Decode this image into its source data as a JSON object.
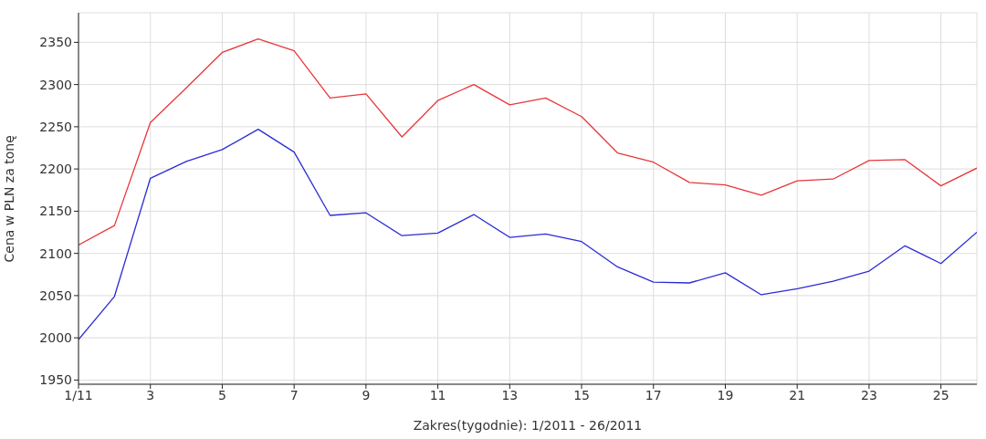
{
  "chart_data": {
    "type": "line",
    "xlabel": "Zakres(tygodnie): 1/2011 - 26/2011",
    "ylabel": "Cena w PLN za tonę",
    "x": [
      1,
      2,
      3,
      4,
      5,
      6,
      7,
      8,
      9,
      10,
      11,
      12,
      13,
      14,
      15,
      16,
      17,
      18,
      19,
      20,
      21,
      22,
      23,
      24,
      25,
      26
    ],
    "series": [
      {
        "color": "#e8363a",
        "values": [
          2110,
          2133,
          2255,
          2296,
          2338,
          2354,
          2340,
          2284,
          2289,
          2238,
          2281,
          2300,
          2276,
          2284,
          2262,
          2219,
          2208,
          2184,
          2181,
          2169,
          2186,
          2188,
          2210,
          2211,
          2180,
          2201
        ]
      },
      {
        "color": "#2b2bd6",
        "values": [
          1998,
          2049,
          2189,
          2209,
          2223,
          2247,
          2220,
          2145,
          2148,
          2121,
          2124,
          2146,
          2119,
          2123,
          2114,
          2084,
          2066,
          2065,
          2077,
          2051,
          2058,
          2067,
          2079,
          2109,
          2088,
          2125
        ]
      }
    ],
    "xlim": [
      1,
      26
    ],
    "xticks": [
      {
        "value": 1,
        "label": "1/11"
      },
      3,
      5,
      7,
      9,
      11,
      13,
      15,
      17,
      19,
      21,
      23,
      25
    ],
    "ylim": [
      1945,
      2385
    ],
    "yticks": [
      1950,
      2000,
      2050,
      2100,
      2150,
      2200,
      2250,
      2300,
      2350
    ],
    "grid": true,
    "legend": false,
    "marker": "none",
    "line_style": "solid"
  }
}
